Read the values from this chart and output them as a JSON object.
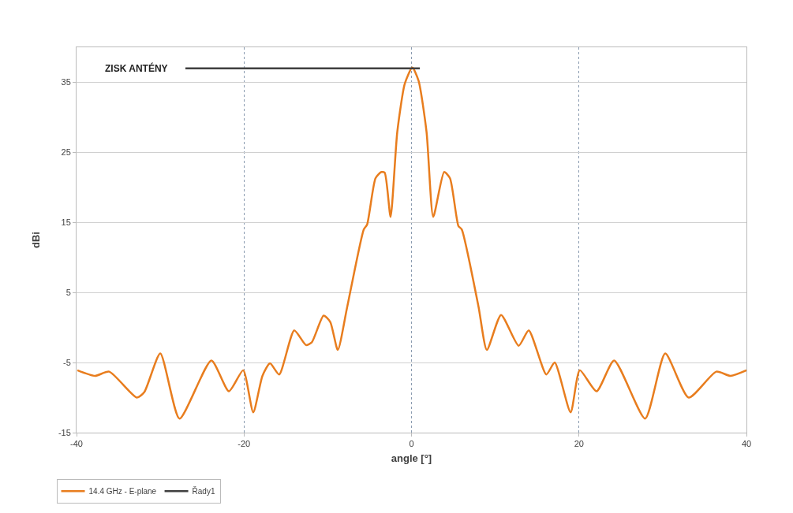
{
  "chart_data": {
    "type": "line",
    "xlabel": "angle [°]",
    "ylabel": "dBi",
    "xlim": [
      -40,
      40
    ],
    "xticks": [
      -40,
      -20,
      0,
      20,
      40
    ],
    "ylim": [
      -15,
      40
    ],
    "yticks": [
      -15,
      -5,
      5,
      15,
      25,
      35
    ],
    "grid": true,
    "legend": "bottom left",
    "marker": "none",
    "line_style": "solid",
    "annotations": [
      "ZISK ANTÉNY"
    ],
    "series": [
      {
        "name": "14.4 GHz - E-plane",
        "color": "#e87d1e",
        "x": [
          -39.9,
          -37.8,
          -36.1,
          -32.8,
          -31.9,
          -30.0,
          -27.7,
          -23.9,
          -21.8,
          -20.1,
          -18.9,
          -17.8,
          -16.9,
          -15.8,
          -14.0,
          -12.6,
          -11.9,
          -10.5,
          -9.7,
          -8.8,
          -7.7,
          -5.7,
          -5.3,
          -4.3,
          -3.6,
          -3.2,
          -2.5,
          -1.7,
          -0.8,
          0.1,
          0.85,
          1.8,
          2.6,
          3.9,
          4.6,
          5.6,
          6.0,
          8.0,
          9.0,
          10.7,
          12.8,
          14.0,
          16.1,
          17.1,
          19.0,
          20.1,
          22.1,
          24.2,
          27.9,
          30.3,
          33.1,
          36.4,
          38.1,
          40.0
        ],
        "values": [
          -6.1,
          -6.9,
          -6.3,
          -10.0,
          -9.2,
          -3.7,
          -13.0,
          -4.7,
          -9.1,
          -6.1,
          -12.1,
          -6.9,
          -5.1,
          -6.7,
          -0.4,
          -2.5,
          -2.1,
          1.7,
          0.8,
          -3.2,
          2.8,
          14.0,
          14.7,
          21.3,
          22.2,
          22.1,
          15.8,
          27.9,
          34.8,
          37.1,
          35.2,
          27.9,
          15.8,
          22.2,
          21.3,
          14.5,
          14.0,
          3.0,
          -3.2,
          1.8,
          -2.6,
          -0.4,
          -6.7,
          -5.0,
          -12.1,
          -6.1,
          -9.1,
          -4.7,
          -13.0,
          -3.7,
          -10.0,
          -6.3,
          -6.9,
          -6.1
        ]
      },
      {
        "name": "Řady1",
        "color": "#404040",
        "x": [
          -27,
          1
        ],
        "values": [
          37,
          37
        ]
      }
    ]
  }
}
